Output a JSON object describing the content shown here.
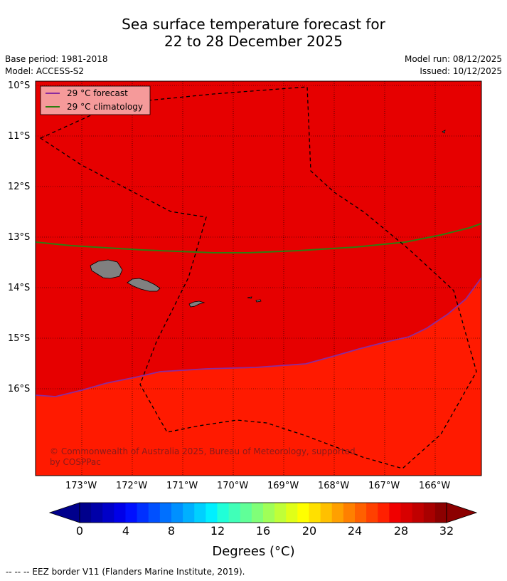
{
  "title": {
    "line1": "Sea surface temperature forecast for",
    "line2": "22 to 28 December 2025"
  },
  "meta": {
    "base_period": "Base period: 1981-2018",
    "model": "Model: ACCESS-S2",
    "model_run": "Model run: 08/12/2025",
    "issued": "Issued: 10/12/2025"
  },
  "map": {
    "lat_labels": [
      "10°S",
      "11°S",
      "12°S",
      "13°S",
      "14°S",
      "15°S",
      "16°S"
    ],
    "lon_labels": [
      "173°W",
      "172°W",
      "171°W",
      "170°W",
      "169°W",
      "168°W",
      "167°W",
      "166°W"
    ],
    "colors": {
      "warm_region": "#e60000",
      "cool_region": "#ff1a00",
      "land": "#808080",
      "forecast_line": "#8b2b9e",
      "climatology_line": "#2e7d10",
      "legend_bg": "#f59a9a"
    },
    "legend": {
      "forecast": "29 °C  forecast",
      "climatology": "29 °C  climatology"
    },
    "copyright": "© Commonwealth of Australia 2025, Bureau of Meteorology, supported",
    "copyright_line2": "by COSPPac"
  },
  "colorbar": {
    "labels": [
      "0",
      "4",
      "8",
      "12",
      "16",
      "20",
      "24",
      "28",
      "32"
    ],
    "title": "Degrees (°C)",
    "colors": [
      "#00008c",
      "#0000a8",
      "#0000c8",
      "#0000e8",
      "#0010ff",
      "#0030ff",
      "#0050ff",
      "#0070ff",
      "#0090ff",
      "#00b0ff",
      "#00d0ff",
      "#00f0ff",
      "#20ffd8",
      "#40ffb8",
      "#60ff98",
      "#80ff78",
      "#a0ff58",
      "#c0ff38",
      "#e0ff18",
      "#ffff00",
      "#ffe000",
      "#ffc000",
      "#ffa000",
      "#ff8000",
      "#ff6000",
      "#ff4000",
      "#ff2000",
      "#f00000",
      "#d80000",
      "#c00000",
      "#a80000",
      "#8c0000"
    ]
  },
  "footer": "--  --  -- EEZ border V11 (Flanders Marine Institute, 2019)."
}
